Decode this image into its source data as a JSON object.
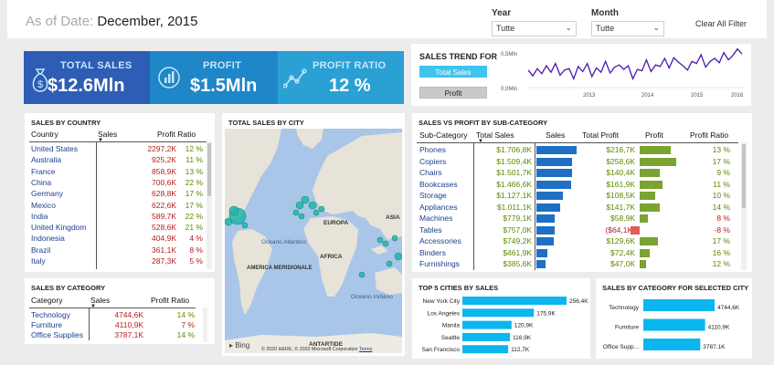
{
  "header": {
    "as_of_label": "As of Date:",
    "as_of_value": "December, 2015",
    "year_label": "Year",
    "year_value": "Tutte",
    "month_label": "Month",
    "month_value": "Tutte",
    "clear_all": "Clear All Filter"
  },
  "kpis": [
    {
      "title": "TOTAL SALES",
      "value": "$12.6Mln",
      "icon": "money-bag-icon",
      "color": "#2e5db5"
    },
    {
      "title": "PROFIT",
      "value": "$1.5Mln",
      "icon": "chart-icon",
      "color": "#1f86c7"
    },
    {
      "title": "PROFIT RATIO",
      "value": "12 %",
      "icon": "trend-icon",
      "color": "#2aa0d4"
    }
  ],
  "trend": {
    "title": "SALES TREND FOR",
    "btn_sales": "Total Sales",
    "btn_profit": "Profit",
    "y_ticks": [
      "0,5Mln",
      "0,0Mln"
    ],
    "x_ticks": [
      "2013",
      "2014",
      "2015",
      "2016"
    ],
    "chart_data": {
      "type": "line",
      "y": [
        0.24,
        0.16,
        0.26,
        0.19,
        0.3,
        0.21,
        0.33,
        0.17,
        0.24,
        0.26,
        0.12,
        0.29,
        0.22,
        0.33,
        0.15,
        0.27,
        0.21,
        0.36,
        0.2,
        0.28,
        0.31,
        0.25,
        0.3,
        0.12,
        0.25,
        0.23,
        0.38,
        0.22,
        0.31,
        0.29,
        0.4,
        0.27,
        0.41,
        0.35,
        0.3,
        0.24,
        0.36,
        0.33,
        0.45,
        0.28,
        0.36,
        0.4,
        0.34,
        0.48,
        0.38,
        0.44,
        0.53,
        0.46
      ],
      "ylim": [
        0,
        0.5
      ]
    }
  },
  "country": {
    "title": "SALES BY COUNTRY",
    "h_country": "Country",
    "h_sales": "Sales",
    "h_ratio": "Profit Ratio",
    "rows": [
      {
        "name": "United States",
        "sales": "2297,2K",
        "ratio": "12 %"
      },
      {
        "name": "Australia",
        "sales": "925,2K",
        "ratio": "11 %"
      },
      {
        "name": "France",
        "sales": "858,9K",
        "ratio": "13 %"
      },
      {
        "name": "China",
        "sales": "700,6K",
        "ratio": "22 %"
      },
      {
        "name": "Germany",
        "sales": "628,8K",
        "ratio": "17 %"
      },
      {
        "name": "Mexico",
        "sales": "622,6K",
        "ratio": "17 %"
      },
      {
        "name": "India",
        "sales": "589,7K",
        "ratio": "22 %"
      },
      {
        "name": "United Kingdom",
        "sales": "528,6K",
        "ratio": "21 %"
      },
      {
        "name": "Indonesia",
        "sales": "404,9K",
        "ratio": "4 %"
      },
      {
        "name": "Brazil",
        "sales": "361,1K",
        "ratio": "8 %"
      },
      {
        "name": "Italy",
        "sales": "287,3K",
        "ratio": "5 %"
      }
    ]
  },
  "map": {
    "title": "TOTAL SALES BY CITY",
    "labels": {
      "europa": "EUROPA",
      "asia": "ASIA",
      "atlantico": "Oceano Atlantico",
      "africa": "AFRICA",
      "america": "AMERICA MERIDIONALE",
      "indiano": "Oceano Indiano",
      "antartide": "ANTARTIDE"
    },
    "bing": "Bing",
    "credit": "© 2020 HERE, © 2020 Microsoft Corporation",
    "terms": "Terms"
  },
  "subcat": {
    "title": "SALES VS PROFIT BY SUB-CATEGORY",
    "h_sub": "Sub-Category",
    "h_total_sales": "Total Sales",
    "h_sales": "Sales",
    "h_total_profit": "Total Profit",
    "h_profit": "Profit",
    "h_ratio": "Profit Ratio",
    "rows": [
      {
        "name": "Phones",
        "sales": "$1.706,8K",
        "profit": "$216,7K",
        "ratio": "13 %",
        "sales_k": 1706.8,
        "profit_k": 216.7
      },
      {
        "name": "Copiers",
        "sales": "$1.509,4K",
        "profit": "$258,6K",
        "ratio": "17 %",
        "sales_k": 1509.4,
        "profit_k": 258.6
      },
      {
        "name": "Chairs",
        "sales": "$1.501,7K",
        "profit": "$140,4K",
        "ratio": "9 %",
        "sales_k": 1501.7,
        "profit_k": 140.4
      },
      {
        "name": "Bookcases",
        "sales": "$1.466,6K",
        "profit": "$161,9K",
        "ratio": "11 %",
        "sales_k": 1466.6,
        "profit_k": 161.9
      },
      {
        "name": "Storage",
        "sales": "$1.127,1K",
        "profit": "$108,5K",
        "ratio": "10 %",
        "sales_k": 1127.1,
        "profit_k": 108.5
      },
      {
        "name": "Appliances",
        "sales": "$1.011,1K",
        "profit": "$141,7K",
        "ratio": "14 %",
        "sales_k": 1011.1,
        "profit_k": 141.7
      },
      {
        "name": "Machines",
        "sales": "$779,1K",
        "profit": "$58,9K",
        "ratio": "8 %",
        "sales_k": 779.1,
        "profit_k": 58.9
      },
      {
        "name": "Tables",
        "sales": "$757,0K",
        "profit": "($64,1K)",
        "ratio": "-8 %",
        "sales_k": 757.0,
        "profit_k": -64.1
      },
      {
        "name": "Accessories",
        "sales": "$749,2K",
        "profit": "$129,6K",
        "ratio": "17 %",
        "sales_k": 749.2,
        "profit_k": 129.6
      },
      {
        "name": "Binders",
        "sales": "$461,9K",
        "profit": "$72,4K",
        "ratio": "16 %",
        "sales_k": 461.9,
        "profit_k": 72.4
      },
      {
        "name": "Furnishings",
        "sales": "$385,6K",
        "profit": "$47,0K",
        "ratio": "12 %",
        "sales_k": 385.6,
        "profit_k": 47.0
      }
    ]
  },
  "category": {
    "title": "SALES BY CATEGORY",
    "h_cat": "Category",
    "h_sales": "Sales",
    "h_ratio": "Profit Ratio",
    "rows": [
      {
        "name": "Technology",
        "sales": "4744,6K",
        "ratio": "14 %"
      },
      {
        "name": "Furniture",
        "sales": "4110,9K",
        "ratio": "7 %"
      },
      {
        "name": "Office Supplies",
        "sales": "3787,1K",
        "ratio": "14 %"
      }
    ]
  },
  "cities": {
    "title": "TOP 5 CITIES BY SALES",
    "chart_data": {
      "type": "bar",
      "categories": [
        "New York City",
        "Los Angeles",
        "Manila",
        "Seattle",
        "San Francisco"
      ],
      "values": [
        256.4,
        175.9,
        120.9,
        116.9,
        112.7
      ],
      "labels": [
        "256,4K",
        "175,9K",
        "120,9K",
        "116,9K",
        "112,7K"
      ]
    }
  },
  "citycat": {
    "title": "SALES BY CATEGORY FOR SELECTED CITY",
    "chart_data": {
      "type": "bar",
      "categories": [
        "Technology",
        "Furniture",
        "Office Supp..."
      ],
      "values": [
        4744.6,
        4110.9,
        3787.1
      ],
      "labels": [
        "4744,6K",
        "4110,9K",
        "3787,1K"
      ]
    }
  },
  "colors": {
    "bar_blue": "#1f6fc4",
    "bar_green": "#7aa332",
    "bar_red": "#e25c5c",
    "bar_cyan": "#0bb6ef",
    "line": "#4a1ab0",
    "map_water": "#a9c6e8",
    "map_land": "#e7e3d8",
    "bubble": "#22b5a8"
  }
}
